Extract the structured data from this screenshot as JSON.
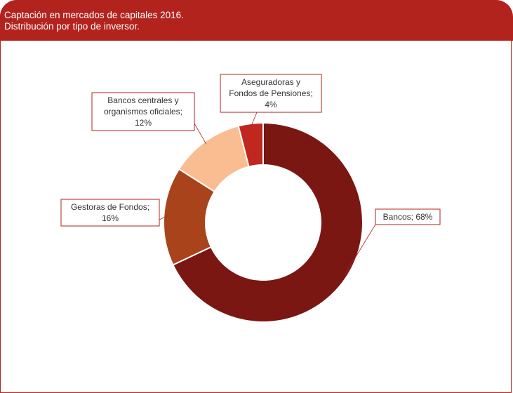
{
  "header": {
    "title_line1": "Captación en mercados de capitales 2016.",
    "title_line2": "Distribución por  tipo de inversor.",
    "background_color": "#b3231e"
  },
  "chart_data": {
    "type": "pie",
    "donut": true,
    "title": "Captación en mercados de capitales 2016. Distribución por  tipo de inversor.",
    "unit": "%",
    "slices": [
      {
        "label": "Bancos",
        "value": 68,
        "color": "#7a1712",
        "label_lines": [
          "Bancos; 68%"
        ]
      },
      {
        "label": "Gestoras de Fondos",
        "value": 16,
        "color": "#a8431c",
        "label_lines": [
          "Gestoras de Fondos;",
          "16%"
        ]
      },
      {
        "label": "Bancos centrales y organismos oficiales",
        "value": 12,
        "color": "#f9bd91",
        "label_lines": [
          "Bancos centrales y",
          "organismos oficiales;",
          "12%"
        ]
      },
      {
        "label": "Aseguradoras y Fondos de Pensiones",
        "value": 4,
        "color": "#c0271e",
        "label_lines": [
          "Aseguradoras y",
          "Fondos de Pensiones;",
          "4%"
        ]
      }
    ],
    "legend": "none"
  }
}
